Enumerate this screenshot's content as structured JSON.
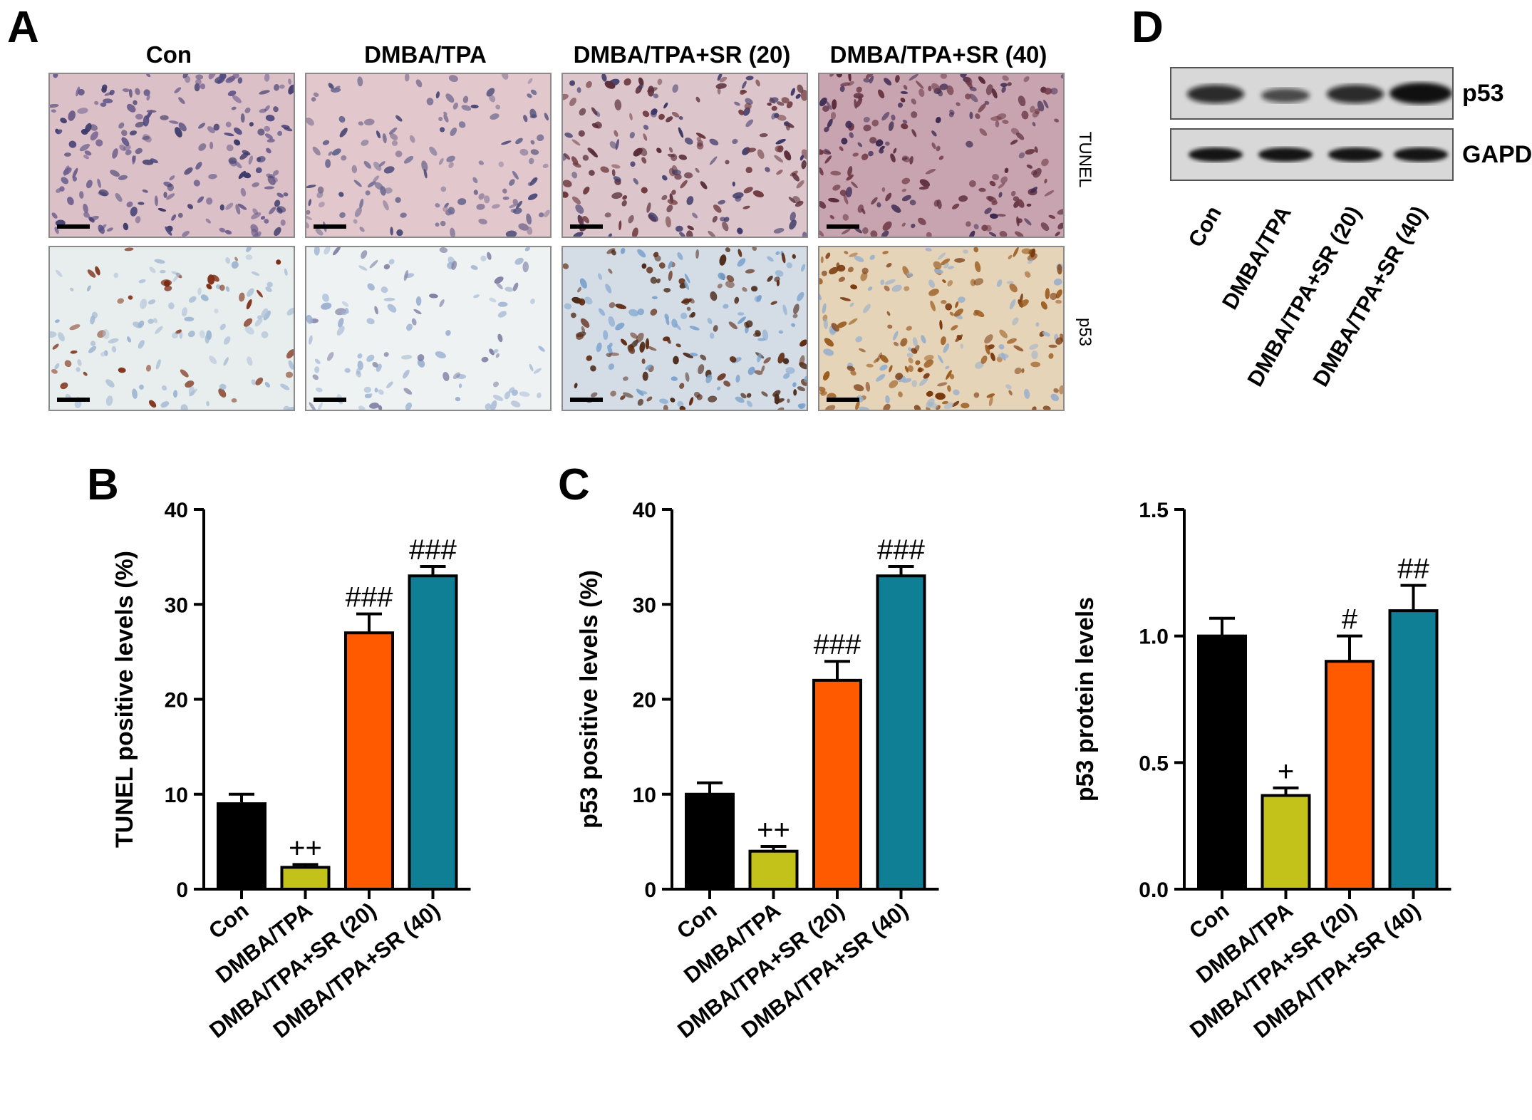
{
  "panel_letters": {
    "a": "A",
    "b": "B",
    "c": "C",
    "d": "D"
  },
  "groups": [
    "Con",
    "DMBA/TPA",
    "DMBA/TPA+SR (20)",
    "DMBA/TPA+SR (40)"
  ],
  "panel_a": {
    "row_labels": {
      "tunel": "TUNEL",
      "p53": "p53"
    }
  },
  "panel_d": {
    "band_labels": {
      "top": "p53",
      "bottom": "GAPDH"
    }
  },
  "colors": {
    "con": "#000000",
    "dmba_tpa": "#c2c21a",
    "sr20": "#ff5a00",
    "sr40": "#0f7f96"
  },
  "chart_data": [
    {
      "id": "tunel",
      "type": "bar",
      "categories": [
        "Con",
        "DMBA/TPA",
        "DMBA/TPA+SR (20)",
        "DMBA/TPA+SR (40)"
      ],
      "values": [
        9,
        2.3,
        27,
        33
      ],
      "errors": [
        1,
        0.3,
        2,
        1
      ],
      "annotations": [
        "",
        "++",
        "###",
        "###"
      ],
      "ylabel": "TUNEL positive levels (%)",
      "ylim": [
        0,
        40
      ],
      "yticks": [
        "0",
        "10",
        "20",
        "30",
        "40"
      ]
    },
    {
      "id": "p53_positive",
      "type": "bar",
      "categories": [
        "Con",
        "DMBA/TPA",
        "DMBA/TPA+SR (20)",
        "DMBA/TPA+SR (40)"
      ],
      "values": [
        10,
        4,
        22,
        33
      ],
      "errors": [
        1.2,
        0.5,
        2,
        1
      ],
      "annotations": [
        "",
        "++",
        "###",
        "###"
      ],
      "ylabel": "p53 positive levels (%)",
      "ylim": [
        0,
        40
      ],
      "yticks": [
        "0",
        "10",
        "20",
        "30",
        "40"
      ]
    },
    {
      "id": "p53_protein",
      "type": "bar",
      "categories": [
        "Con",
        "DMBA/TPA",
        "DMBA/TPA+SR (20)",
        "DMBA/TPA+SR (40)"
      ],
      "values": [
        1.0,
        0.37,
        0.9,
        1.1
      ],
      "errors": [
        0.07,
        0.03,
        0.1,
        0.1
      ],
      "annotations": [
        "",
        "+",
        "#",
        "##"
      ],
      "ylabel": "p53 protein levels",
      "ylim": [
        0,
        1.5
      ],
      "yticks": [
        "0.0",
        "0.5",
        "1.0",
        "1.5"
      ]
    }
  ]
}
